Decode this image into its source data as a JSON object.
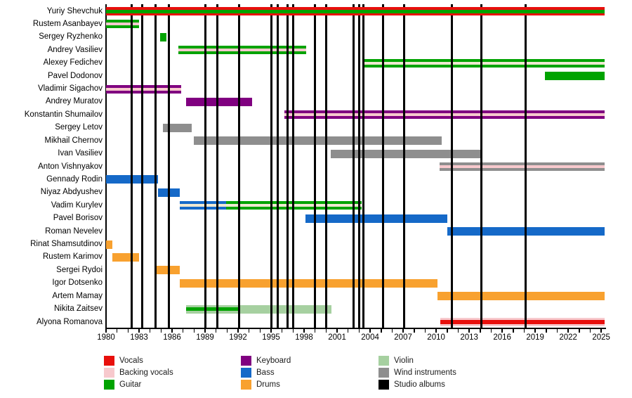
{
  "chart_data": {
    "type": "timeline",
    "title": "",
    "colors": {
      "vocals": "#e80f0c",
      "backing_vocals": "#f7c9cd",
      "guitar": "#00a300",
      "keyboard": "#800080",
      "bass": "#1569c8",
      "drums": "#f8a12f",
      "violin": "#a6d0a0",
      "wind": "#8e8e8e",
      "studio_albums": "#000000",
      "cream": "#efe8d1"
    },
    "axis": {
      "min": 1980,
      "max": 2026,
      "tick_interval": 1,
      "label_interval": 3,
      "labels": [
        "1980",
        "1983",
        "1986",
        "1989",
        "1992",
        "1995",
        "1998",
        "2001",
        "2004",
        "2007",
        "2010",
        "2013",
        "2016",
        "2019",
        "2022",
        "2025"
      ]
    },
    "members": [
      {
        "name": "Yuriy Shevchuk",
        "segments": [
          {
            "from": 1980,
            "to": 2025.3,
            "color": "vocals",
            "stripe": "guitar"
          }
        ]
      },
      {
        "name": "Rustem Asanbayev",
        "segments": [
          {
            "from": 1980,
            "to": 1983.0,
            "color": "guitar",
            "stripe": "backing_vocals"
          }
        ]
      },
      {
        "name": "Sergey Ryzhenko",
        "segments": [
          {
            "from": 1984.9,
            "to": 1985.5,
            "color": "guitar"
          }
        ]
      },
      {
        "name": "Andrey Vasiliev",
        "segments": [
          {
            "from": 1986.6,
            "to": 1998.2,
            "color": "guitar",
            "stripe": "backing_vocals"
          }
        ]
      },
      {
        "name": "Alexey Fedichev",
        "segments": [
          {
            "from": 2003.4,
            "to": 2025.3,
            "color": "guitar",
            "stripe": "cream"
          }
        ]
      },
      {
        "name": "Pavel Dodonov",
        "segments": [
          {
            "from": 2019.9,
            "to": 2025.3,
            "color": "guitar"
          }
        ]
      },
      {
        "name": "Vladimir Sigachov",
        "segments": [
          {
            "from": 1980,
            "to": 1986.8,
            "color": "keyboard",
            "stripe": "backing_vocals"
          }
        ]
      },
      {
        "name": "Andrey Muratov",
        "segments": [
          {
            "from": 1987.3,
            "to": 1993.3,
            "color": "keyboard"
          }
        ]
      },
      {
        "name": "Konstantin Shumailov",
        "segments": [
          {
            "from": 1996.2,
            "to": 2025.3,
            "color": "keyboard",
            "stripe": "backing_vocals"
          }
        ]
      },
      {
        "name": "Sergey Letov",
        "segments": [
          {
            "from": 1985.2,
            "to": 1987.8,
            "color": "wind"
          }
        ]
      },
      {
        "name": "Mikhail Chernov",
        "segments": [
          {
            "from": 1988.0,
            "to": 2010.5,
            "color": "wind"
          }
        ]
      },
      {
        "name": "Ivan Vasiliev",
        "segments": [
          {
            "from": 2000.4,
            "to": 2014.0,
            "color": "wind"
          }
        ]
      },
      {
        "name": "Anton Vishnyakov",
        "segments": [
          {
            "from": 2010.3,
            "to": 2025.3,
            "color": "wind",
            "stripe": "backing_vocals"
          }
        ]
      },
      {
        "name": "Gennady Rodin",
        "segments": [
          {
            "from": 1980,
            "to": 1984.7,
            "color": "bass"
          }
        ]
      },
      {
        "name": "Niyaz Abdyushev",
        "segments": [
          {
            "from": 1984.7,
            "to": 1986.7,
            "color": "bass"
          }
        ]
      },
      {
        "name": "Vadim Kurylev",
        "segments": [
          {
            "from": 1986.7,
            "to": 1990.9,
            "color": "bass",
            "stripe": "cream"
          },
          {
            "from": 1990.9,
            "to": 2003.2,
            "color": "guitar",
            "stripe": "cream"
          }
        ]
      },
      {
        "name": "Pavel Borisov",
        "segments": [
          {
            "from": 1998.1,
            "to": 2011.0,
            "color": "bass"
          }
        ]
      },
      {
        "name": "Roman Nevelev",
        "segments": [
          {
            "from": 2011.0,
            "to": 2025.3,
            "color": "bass"
          }
        ]
      },
      {
        "name": "Rinat Shamsutdinov",
        "segments": [
          {
            "from": 1980,
            "to": 1980.6,
            "color": "drums"
          }
        ]
      },
      {
        "name": "Rustem Karimov",
        "segments": [
          {
            "from": 1980.6,
            "to": 1983.0,
            "color": "drums"
          }
        ]
      },
      {
        "name": "Sergei Rydoi",
        "segments": [
          {
            "from": 1984.4,
            "to": 1986.7,
            "color": "drums"
          }
        ]
      },
      {
        "name": "Igor Dotsenko",
        "segments": [
          {
            "from": 1986.7,
            "to": 2010.1,
            "color": "drums"
          }
        ]
      },
      {
        "name": "Artem Mamay",
        "segments": [
          {
            "from": 2010.1,
            "to": 2025.3,
            "color": "drums"
          }
        ]
      },
      {
        "name": "Nikita Zaitsev",
        "segments": [
          {
            "from": 1987.3,
            "to": 1992.2,
            "color": "violin",
            "stripe": "guitar"
          },
          {
            "from": 1992.2,
            "to": 2000.5,
            "color": "violin"
          }
        ]
      },
      {
        "name": "Alyona Romanova",
        "segments": [
          {
            "from": 2010.4,
            "to": 2025.3,
            "color": "backing_vocals",
            "stripe": "vocals"
          }
        ]
      }
    ],
    "album_years": [
      1982.3,
      1983.3,
      1984.5,
      1985.7,
      1989.0,
      1990.1,
      1992.1,
      1995.0,
      1995.6,
      1996.5,
      1997.0,
      1999.0,
      2000.0,
      2002.5,
      2003.0,
      2003.4,
      2005.2,
      2007.1,
      2011.4,
      2014.1,
      2018.1
    ],
    "legend": {
      "items": [
        {
          "label": "Vocals",
          "color": "vocals"
        },
        {
          "label": "Backing vocals",
          "color": "backing_vocals"
        },
        {
          "label": "Guitar",
          "color": "guitar"
        },
        {
          "label": "Keyboard",
          "color": "keyboard"
        },
        {
          "label": "Bass",
          "color": "bass"
        },
        {
          "label": "Drums",
          "color": "drums"
        },
        {
          "label": "Violin",
          "color": "violin"
        },
        {
          "label": "Wind instruments",
          "color": "wind"
        },
        {
          "label": "Studio albums",
          "color": "studio_albums"
        }
      ]
    }
  }
}
